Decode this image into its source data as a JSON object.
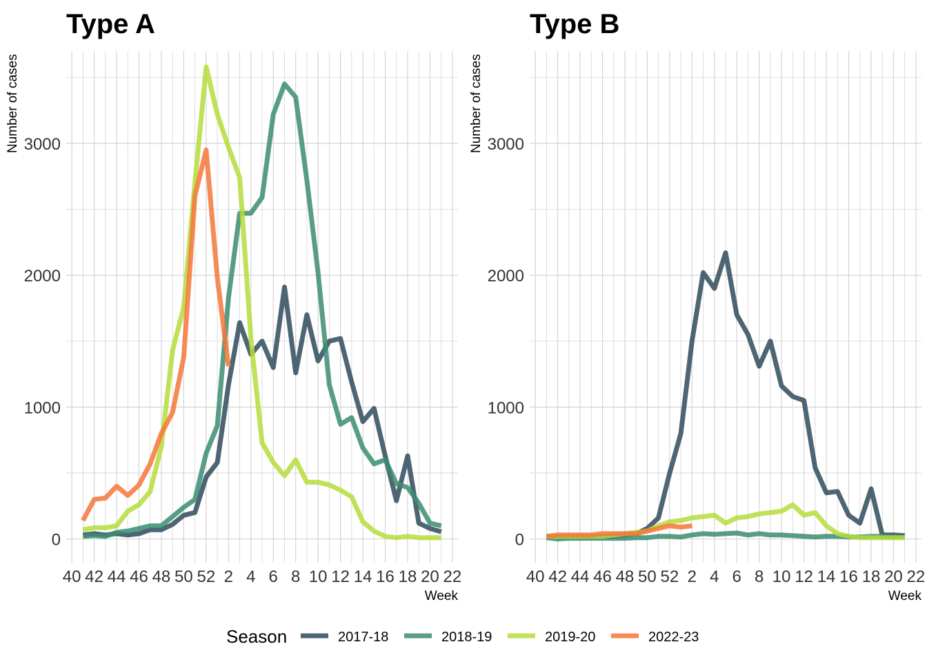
{
  "chart_data": [
    {
      "type": "line",
      "title": "Type A",
      "xlabel": "Week",
      "ylabel": "Number of cases",
      "x_tick_labels": [
        "40",
        "42",
        "44",
        "46",
        "48",
        "50",
        "52",
        "2",
        "4",
        "6",
        "8",
        "10",
        "12",
        "14",
        "16",
        "18",
        "20",
        "22"
      ],
      "y_ticks": [
        0,
        1000,
        2000,
        3000
      ],
      "ylim": [
        -180,
        3700
      ],
      "grid": true,
      "x_weeks": [
        41,
        42,
        43,
        44,
        45,
        46,
        47,
        48,
        49,
        50,
        51,
        52,
        1,
        2,
        3,
        4,
        5,
        6,
        7,
        8,
        9,
        10,
        11,
        12,
        13,
        14,
        15,
        16,
        17,
        18,
        19,
        20,
        21
      ],
      "series": [
        {
          "name": "2017-18",
          "color": "#2f4b5c",
          "values": [
            30,
            40,
            30,
            40,
            30,
            40,
            70,
            70,
            110,
            180,
            200,
            470,
            580,
            1170,
            1640,
            1400,
            1500,
            1300,
            1910,
            1260,
            1700,
            1350,
            1500,
            1520,
            1190,
            890,
            990,
            630,
            290,
            630,
            120,
            80,
            55
          ]
        },
        {
          "name": "2018-19",
          "color": "#3b8c70",
          "values": [
            20,
            25,
            20,
            50,
            60,
            80,
            100,
            100,
            170,
            240,
            300,
            650,
            860,
            1830,
            2470,
            2470,
            2590,
            3220,
            3450,
            3350,
            2720,
            2020,
            1170,
            870,
            920,
            690,
            570,
            600,
            420,
            390,
            270,
            120,
            100
          ]
        },
        {
          "name": "2019-20",
          "color": "#b5dc3b",
          "values": [
            70,
            85,
            85,
            100,
            210,
            260,
            360,
            700,
            1430,
            1760,
            2700,
            3580,
            3220,
            2970,
            2740,
            1520,
            730,
            580,
            480,
            600,
            430,
            430,
            410,
            370,
            320,
            130,
            60,
            20,
            10,
            20,
            10,
            10,
            10
          ]
        },
        {
          "name": "2022-23",
          "color": "#f6773a",
          "values": [
            140,
            300,
            310,
            400,
            330,
            410,
            570,
            800,
            960,
            1380,
            2600,
            2950,
            1980,
            1310,
            null,
            null,
            null,
            null,
            null,
            null,
            null,
            null,
            null,
            null,
            null,
            null,
            null,
            null,
            null,
            null,
            null,
            null,
            null
          ]
        }
      ]
    },
    {
      "type": "line",
      "title": "Type B",
      "xlabel": "Week",
      "ylabel": "Number of cases",
      "x_tick_labels": [
        "40",
        "42",
        "44",
        "46",
        "48",
        "50",
        "52",
        "2",
        "4",
        "6",
        "8",
        "10",
        "12",
        "14",
        "16",
        "18",
        "20",
        "22"
      ],
      "y_ticks": [
        0,
        1000,
        2000,
        3000
      ],
      "ylim": [
        -180,
        3700
      ],
      "grid": true,
      "x_weeks": [
        41,
        42,
        43,
        44,
        45,
        46,
        47,
        48,
        49,
        50,
        51,
        52,
        1,
        2,
        3,
        4,
        5,
        6,
        7,
        8,
        9,
        10,
        11,
        12,
        13,
        14,
        15,
        16,
        17,
        18,
        19,
        20,
        21
      ],
      "series": [
        {
          "name": "2017-18",
          "color": "#2f4b5c",
          "values": [
            20,
            20,
            20,
            20,
            20,
            20,
            20,
            30,
            40,
            80,
            160,
            500,
            800,
            1500,
            2020,
            1900,
            2170,
            1700,
            1550,
            1310,
            1500,
            1160,
            1080,
            1050,
            540,
            350,
            360,
            180,
            120,
            380,
            30,
            30,
            25
          ]
        },
        {
          "name": "2018-19",
          "color": "#3b8c70",
          "values": [
            10,
            0,
            5,
            5,
            5,
            5,
            5,
            5,
            10,
            10,
            20,
            20,
            15,
            30,
            40,
            35,
            40,
            45,
            30,
            40,
            30,
            30,
            25,
            20,
            15,
            20,
            20,
            15,
            15,
            20,
            20,
            15,
            15
          ]
        },
        {
          "name": "2019-20",
          "color": "#b5dc3b",
          "values": [
            20,
            20,
            20,
            20,
            20,
            20,
            30,
            40,
            50,
            60,
            100,
            130,
            140,
            160,
            170,
            180,
            120,
            160,
            170,
            190,
            200,
            210,
            260,
            180,
            200,
            100,
            40,
            20,
            10,
            10,
            10,
            10,
            10
          ]
        },
        {
          "name": "2022-23",
          "color": "#f6773a",
          "values": [
            20,
            30,
            30,
            30,
            30,
            40,
            40,
            40,
            40,
            60,
            80,
            100,
            90,
            100,
            null,
            null,
            null,
            null,
            null,
            null,
            null,
            null,
            null,
            null,
            null,
            null,
            null,
            null,
            null,
            null,
            null,
            null,
            null
          ]
        }
      ]
    }
  ],
  "legend": {
    "title": "Season",
    "items": [
      {
        "label": "2017-18",
        "color": "#2f4b5c"
      },
      {
        "label": "2018-19",
        "color": "#3b8c70"
      },
      {
        "label": "2019-20",
        "color": "#b5dc3b"
      },
      {
        "label": "2022-23",
        "color": "#f6773a"
      }
    ]
  }
}
